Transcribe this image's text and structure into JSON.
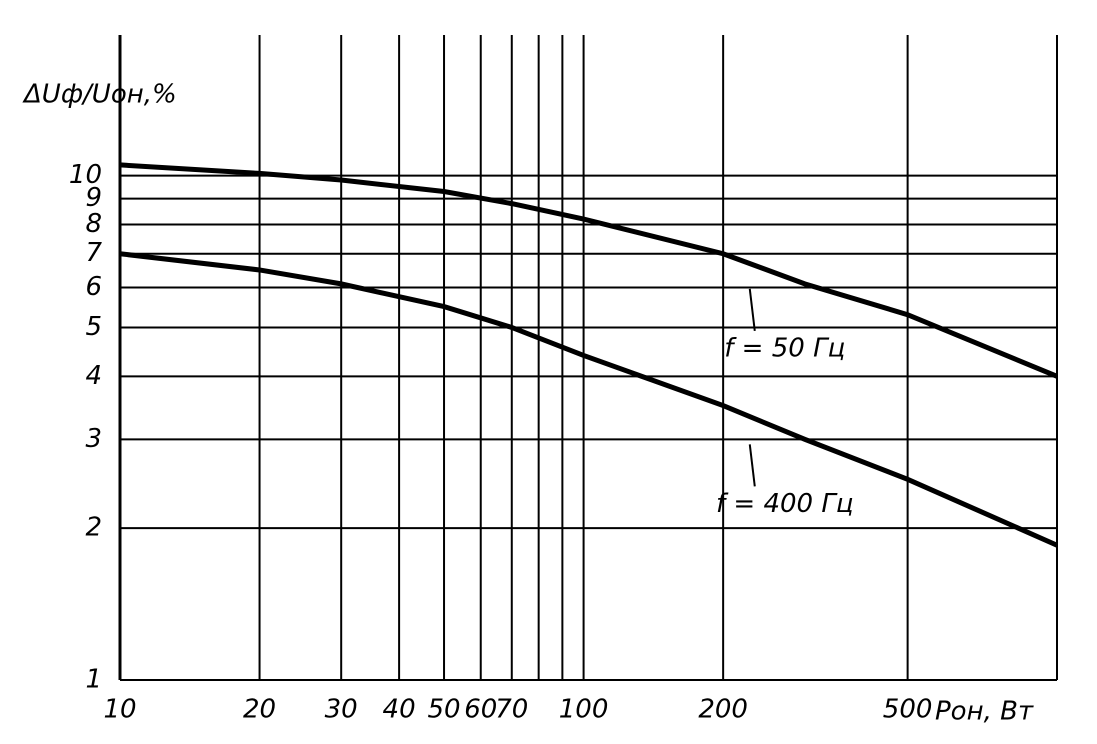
{
  "chart_data": {
    "type": "line",
    "y_label": "ΔUф/Uон,%",
    "x_label": "Pон, Вт",
    "x": [
      10,
      20,
      30,
      50,
      70,
      100,
      200,
      300,
      500,
      1050
    ],
    "series": [
      {
        "name": "f = 50 Гц",
        "color": "#000000",
        "values": [
          10.5,
          10.1,
          9.8,
          9.3,
          8.8,
          8.2,
          7,
          6.1,
          5.3,
          4
        ]
      },
      {
        "name": "f = 400 Гц",
        "color": "#000000",
        "values": [
          7,
          6.5,
          6.1,
          5.5,
          5,
          4.4,
          3.5,
          3,
          2.5,
          1.85
        ]
      }
    ],
    "xlog": true,
    "ylog": true,
    "xlim": [
      10,
      1050
    ],
    "ylim": [
      1,
      19
    ],
    "xticks": [
      10,
      20,
      30,
      40,
      50,
      60,
      70,
      100,
      200,
      500
    ],
    "xgrid_extra": [
      80,
      90
    ],
    "yticks": [
      1,
      2,
      3,
      4,
      5,
      6,
      7,
      8,
      9,
      10
    ],
    "grid": true
  }
}
